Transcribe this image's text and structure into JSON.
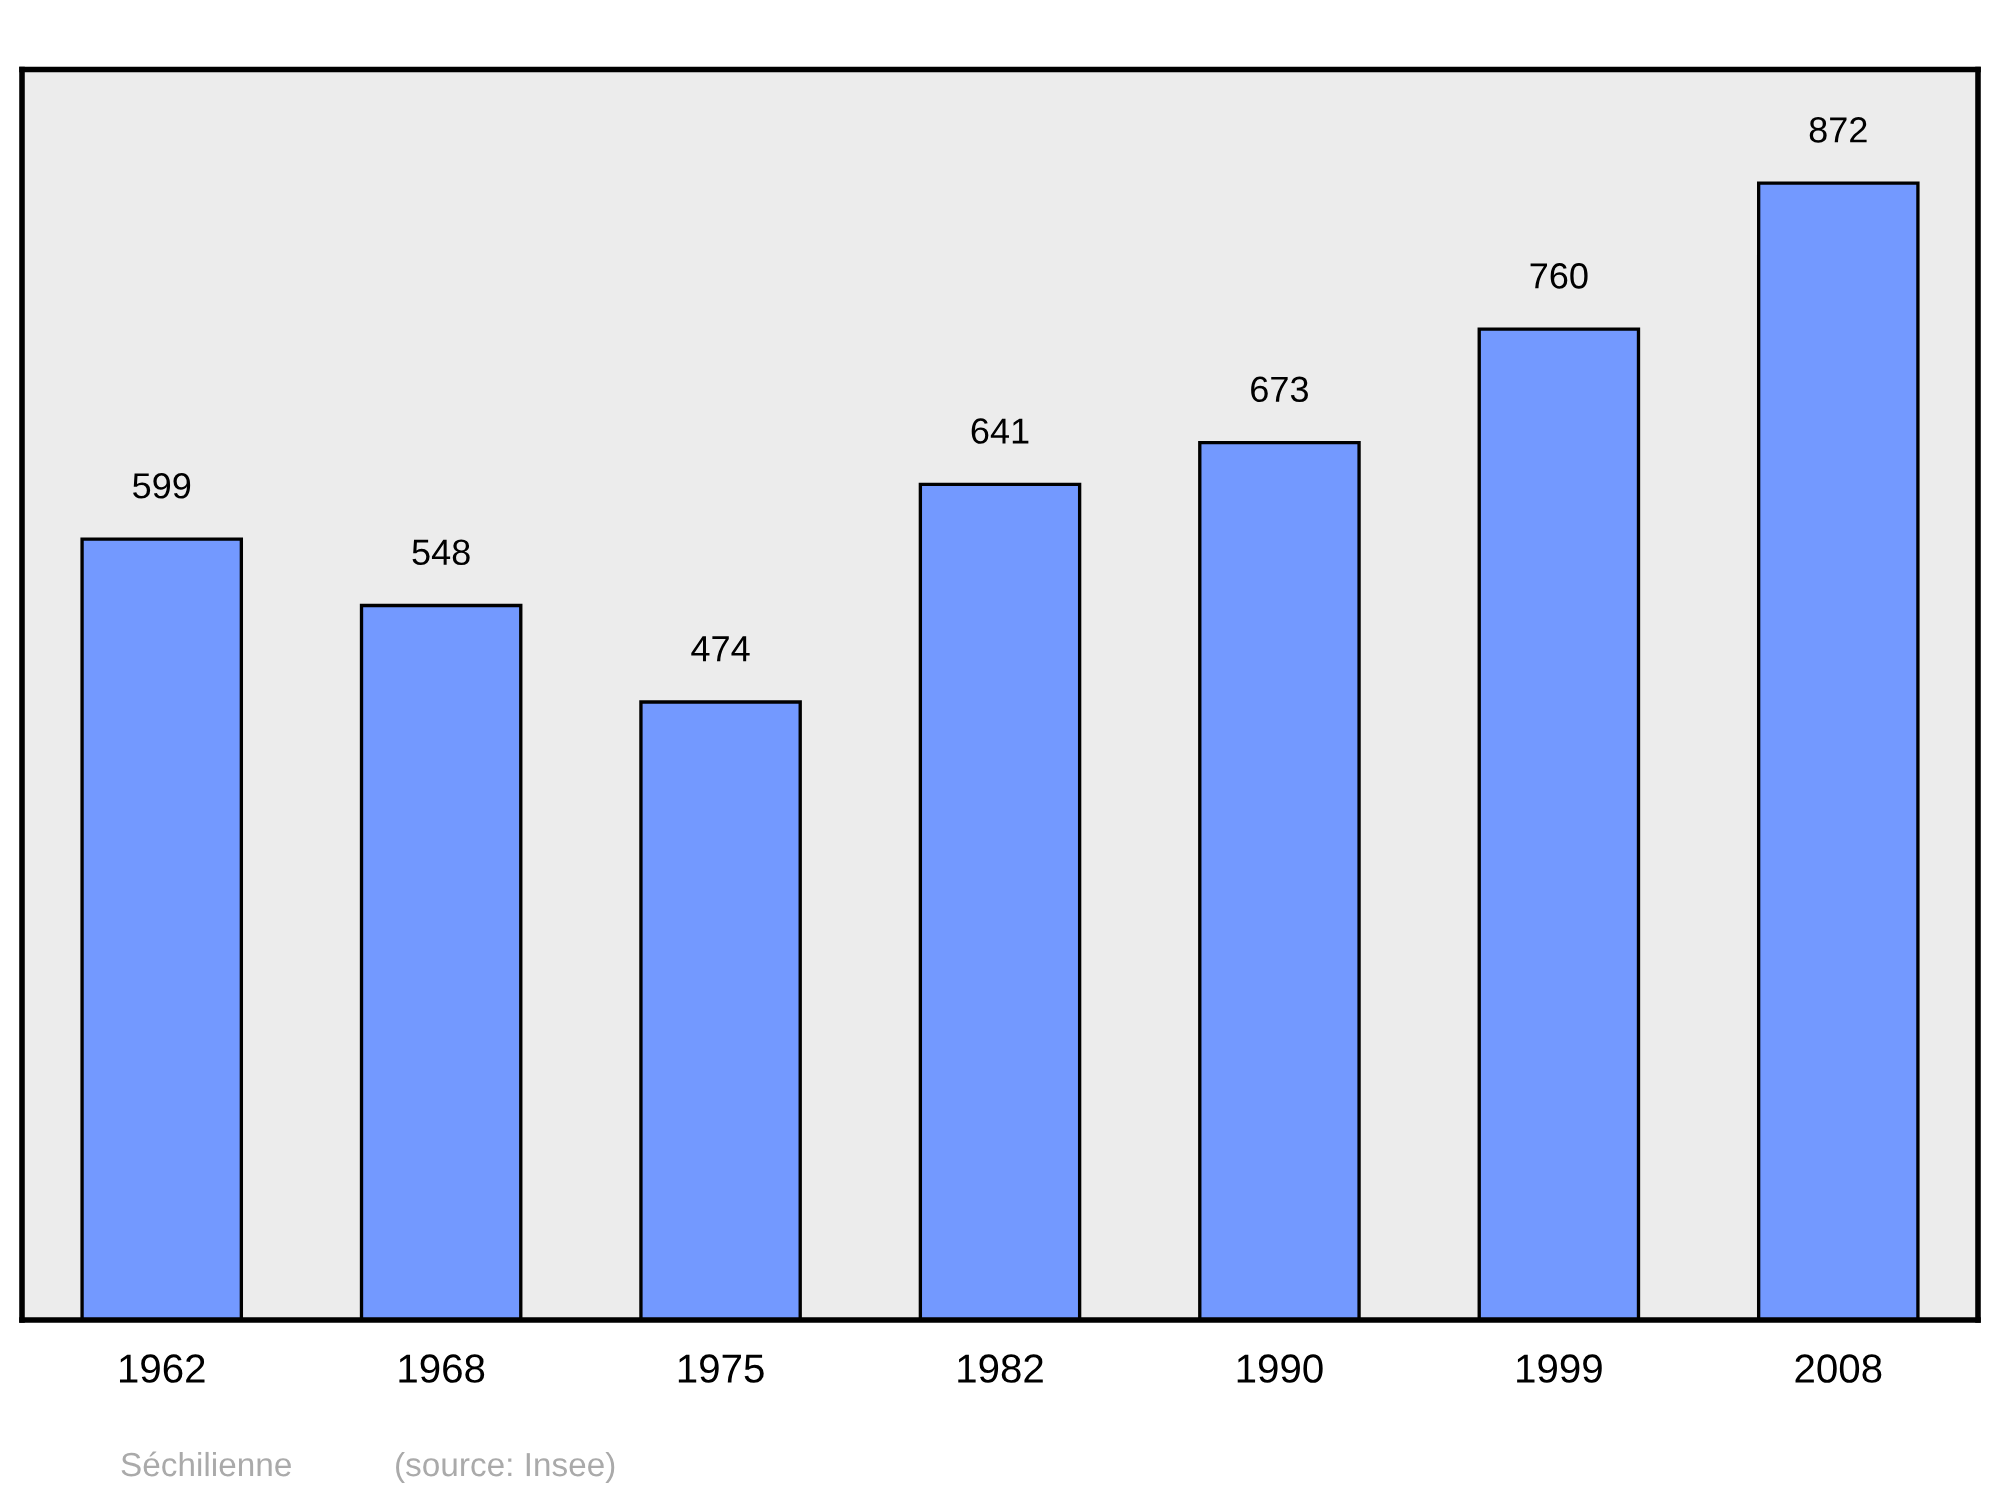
{
  "chart_data": {
    "type": "bar",
    "categories": [
      "1962",
      "1968",
      "1975",
      "1982",
      "1990",
      "1999",
      "2008"
    ],
    "values": [
      599,
      548,
      474,
      641,
      673,
      760,
      872
    ],
    "color": "#7399ff",
    "data_labels": true,
    "grid": false,
    "annotations": [
      "Séchilienne",
      "(source: Insee)"
    ]
  }
}
